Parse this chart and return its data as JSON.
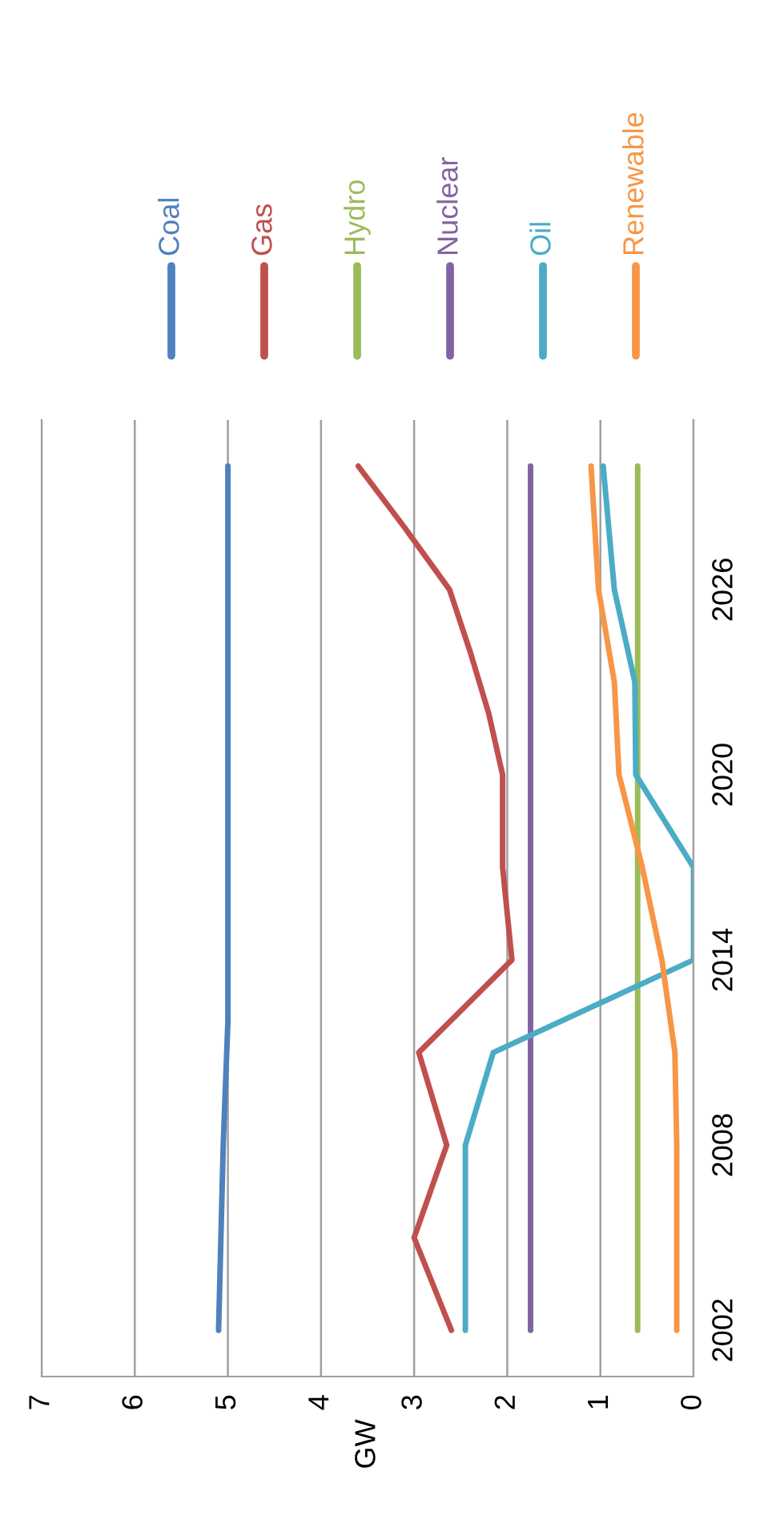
{
  "chart_data": {
    "type": "line",
    "orientation": "horizontal",
    "ylabel": "GW",
    "x": [
      2002,
      2005,
      2008,
      2011,
      2014,
      2017,
      2020,
      2022,
      2024,
      2026,
      2028,
      2030
    ],
    "series": [
      {
        "name": "Coal",
        "color": "#4f81bd",
        "x": [
          2002,
          2008,
          2012,
          2020,
          2030
        ],
        "values": [
          5.1,
          5.05,
          5.0,
          5.0,
          5.0
        ]
      },
      {
        "name": "Gas",
        "color": "#c0504d",
        "values": [
          2.6,
          3.0,
          2.65,
          2.95,
          1.95,
          2.05,
          2.05,
          2.2,
          2.4,
          2.62,
          3.1,
          3.6
        ]
      },
      {
        "name": "Hydro",
        "color": "#9bbb59",
        "x": [
          2002,
          2030
        ],
        "values": [
          0.6,
          0.6
        ]
      },
      {
        "name": "Nuclear",
        "color": "#8064a2",
        "x": [
          2002,
          2030
        ],
        "values": [
          1.75,
          1.75
        ]
      },
      {
        "name": "Oil",
        "color": "#4bacc6",
        "x": [
          2002,
          2008,
          2011,
          2014,
          2017,
          2020,
          2023,
          2026,
          2030
        ],
        "values": [
          2.45,
          2.45,
          2.15,
          0.0,
          0.0,
          0.62,
          0.63,
          0.85,
          0.97
        ]
      },
      {
        "name": "Renewable",
        "color": "#f79646",
        "x": [
          2002,
          2008,
          2011,
          2014,
          2017,
          2020,
          2023,
          2026,
          2030
        ],
        "values": [
          0.18,
          0.18,
          0.2,
          0.34,
          0.55,
          0.8,
          0.85,
          1.02,
          1.1
        ]
      }
    ],
    "xlim": [
      7,
      0
    ],
    "xticks": [
      7,
      6,
      5,
      4,
      3,
      2,
      1,
      0
    ],
    "ylim": [
      2000.5,
      2031.5
    ],
    "yticks": [
      2002,
      2008,
      2014,
      2020,
      2026
    ],
    "grid": "x",
    "legend": "top"
  }
}
